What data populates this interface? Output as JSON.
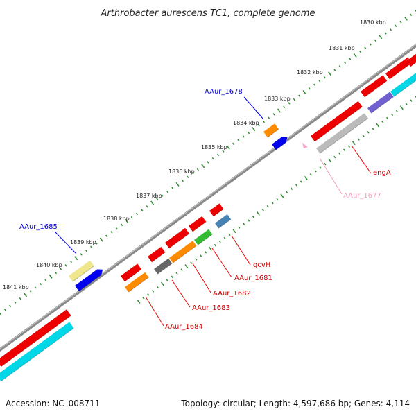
{
  "title": "Arthrobacter aurescens TC1, complete genome",
  "footer": {
    "accession": "Accession: NC_008711",
    "summary": "Topology: circular; Length: 4,597,686 bp; Genes: 4,114"
  },
  "ticks": [
    "1830 kbp",
    "1831 kbp",
    "1832 kbp",
    "1833 kbp",
    "1834 kbp",
    "1835 kbp",
    "1836 kbp",
    "1837 kbp",
    "1838 kbp",
    "1839 kbp",
    "1840 kbp",
    "1841 kbp"
  ],
  "gene_labels": [
    {
      "name": "AAur_1678",
      "color": "#0000cc"
    },
    {
      "name": "engA",
      "color": "#cc0000"
    },
    {
      "name": "AAur_1677",
      "color": "#f0a0c0"
    },
    {
      "name": "AAur_1685",
      "color": "#0000cc"
    },
    {
      "name": "gcvH",
      "color": "#cc0000"
    },
    {
      "name": "AAur_1681",
      "color": "#cc0000"
    },
    {
      "name": "AAur_1682",
      "color": "#cc0000"
    },
    {
      "name": "AAur_1683",
      "color": "#cc0000"
    },
    {
      "name": "AAur_1684",
      "color": "#cc0000"
    }
  ],
  "colors": {
    "backbone": "#888888",
    "tick_marks": "#2e8b2e",
    "gene_red": "#ee0000",
    "gene_orange": "#ff8c00",
    "gene_blue": "#0000ee",
    "gene_cyan": "#00d8e8",
    "gene_gray": "#bbbbbb",
    "gene_darkgray": "#666666",
    "gene_green": "#33bb33",
    "gene_steel": "#4682b4",
    "gene_purple": "#7060d0",
    "gene_khaki": "#f0e68c",
    "gene_pink": "#f4a6c8"
  }
}
